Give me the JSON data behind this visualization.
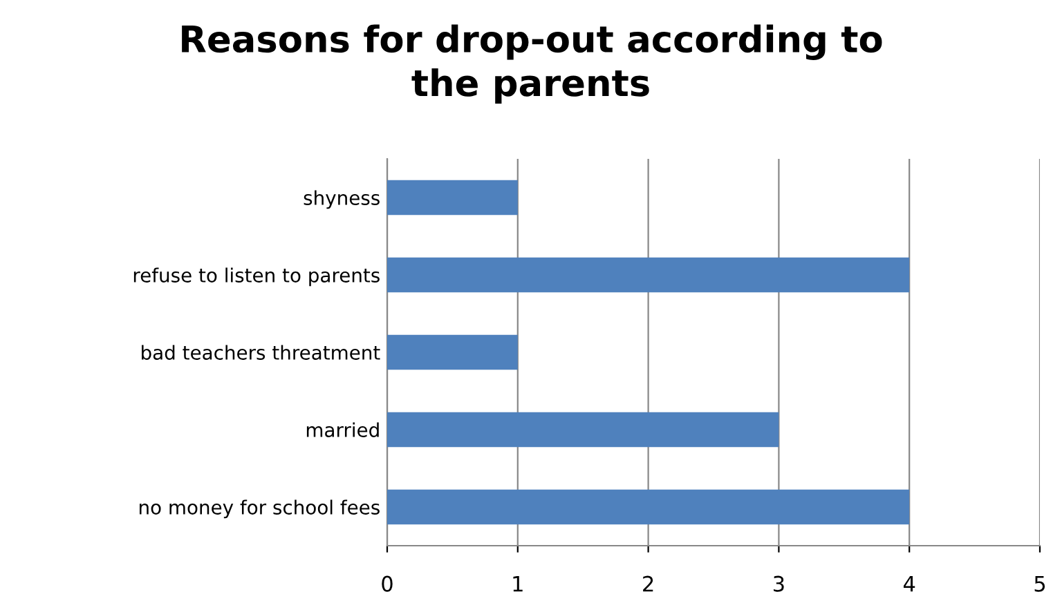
{
  "chart_data": {
    "type": "bar",
    "orientation": "horizontal",
    "title": "Reasons for drop-out according to\nthe parents",
    "categories": [
      "shyness",
      "refuse to listen to parents",
      "bad teachers threatment",
      "married",
      "no money for school fees"
    ],
    "values": [
      1,
      4,
      1,
      3,
      4
    ],
    "color": "#4f81bd",
    "xlim": [
      0,
      5
    ],
    "xticks": [
      0,
      1,
      2,
      3,
      4,
      5
    ],
    "grid": "x",
    "legend": false
  }
}
